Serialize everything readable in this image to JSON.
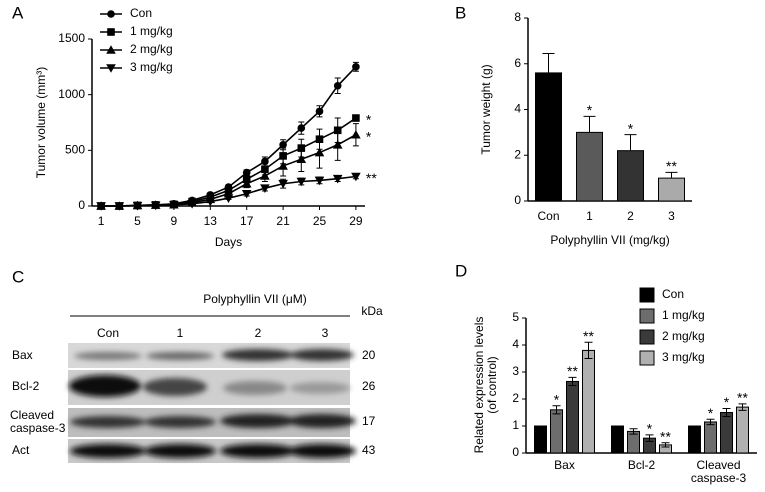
{
  "chart_data": [
    {
      "type": "line",
      "title": "A",
      "xlabel": "Days",
      "ylabel": "Tumor volume (mm³)",
      "x": [
        1,
        3,
        5,
        7,
        9,
        11,
        13,
        15,
        17,
        19,
        21,
        23,
        25,
        27,
        29
      ],
      "xlim": [
        0,
        30
      ],
      "xticks": [
        1,
        5,
        9,
        13,
        17,
        21,
        25,
        29
      ],
      "ylim": [
        0,
        1500
      ],
      "yticks": [
        0,
        500,
        1000,
        1500
      ],
      "series": [
        {
          "name": "Con",
          "color": "#000000",
          "marker": "circle",
          "values": [
            0,
            0,
            5,
            10,
            20,
            50,
            100,
            170,
            300,
            400,
            550,
            700,
            850,
            1080,
            1250
          ],
          "errors": [
            0,
            0,
            2,
            3,
            5,
            10,
            15,
            20,
            25,
            40,
            45,
            55,
            50,
            70,
            40
          ]
        },
        {
          "name": "1 mg/kg",
          "color": "#000000",
          "marker": "square",
          "annotation": "*",
          "values": [
            0,
            0,
            5,
            10,
            15,
            40,
            80,
            140,
            240,
            330,
            450,
            520,
            600,
            680,
            790
          ],
          "errors": [
            0,
            0,
            2,
            3,
            5,
            8,
            12,
            20,
            30,
            50,
            70,
            80,
            90,
            110,
            20
          ]
        },
        {
          "name": "2 mg/kg",
          "color": "#000000",
          "marker": "triangle",
          "annotation": "*",
          "values": [
            0,
            0,
            5,
            8,
            12,
            30,
            60,
            110,
            200,
            270,
            360,
            420,
            480,
            550,
            640
          ],
          "errors": [
            0,
            0,
            2,
            3,
            4,
            8,
            12,
            20,
            35,
            50,
            90,
            110,
            140,
            140,
            100
          ]
        },
        {
          "name": "3 mg/kg",
          "color": "#000000",
          "marker": "triangle-down",
          "annotation": "**",
          "values": [
            0,
            0,
            3,
            5,
            10,
            20,
            40,
            70,
            110,
            160,
            200,
            220,
            230,
            245,
            265
          ],
          "errors": [
            0,
            0,
            1,
            2,
            3,
            5,
            8,
            10,
            20,
            25,
            40,
            30,
            30,
            25,
            20
          ]
        }
      ]
    },
    {
      "type": "bar",
      "title": "B",
      "xlabel": "Polyphyllin VII (mg/kg)",
      "ylabel": "Tumor weight (g)",
      "categories": [
        "Con",
        "1",
        "2",
        "3"
      ],
      "values": [
        5.6,
        3.0,
        2.2,
        1.0
      ],
      "errors": [
        0.85,
        0.7,
        0.7,
        0.25
      ],
      "colors": [
        "#000000",
        "#5a5a5a",
        "#333333",
        "#aaaaaa"
      ],
      "significance": [
        null,
        "*",
        "*",
        "**"
      ],
      "ylim": [
        0,
        8
      ],
      "yticks": [
        0,
        2,
        4,
        6,
        8
      ]
    },
    {
      "type": "grouped-bar",
      "title": "D",
      "ylabel": "Related expression levels (of control)",
      "categories": [
        "Bax",
        "Bcl-2",
        "Cleaved caspase-3"
      ],
      "ylim": [
        0,
        5
      ],
      "yticks": [
        0,
        1,
        2,
        3,
        4,
        5
      ],
      "series": [
        {
          "name": "Con",
          "color": "#000000",
          "values": [
            1,
            1,
            1
          ],
          "errors": [
            0,
            0,
            0
          ],
          "significance": [
            null,
            null,
            null
          ]
        },
        {
          "name": "1 mg/kg",
          "color": "#6d6d6d",
          "values": [
            1.6,
            0.8,
            1.15
          ],
          "errors": [
            0.15,
            0.1,
            0.1
          ],
          "significance": [
            "*",
            null,
            "*"
          ]
        },
        {
          "name": "2 mg/kg",
          "color": "#3a3a3a",
          "values": [
            2.65,
            0.55,
            1.5
          ],
          "errors": [
            0.15,
            0.12,
            0.15
          ],
          "significance": [
            "**",
            "*",
            "*"
          ]
        },
        {
          "name": "3 mg/kg",
          "color": "#b0b0b0",
          "values": [
            3.8,
            0.3,
            1.7
          ],
          "errors": [
            0.3,
            0.08,
            0.12
          ],
          "significance": [
            "**",
            "**",
            "**"
          ]
        }
      ]
    }
  ],
  "blot": {
    "title": "C",
    "treatment": "Polyphyllin VII (μM)",
    "unit": "kDa",
    "lanes": [
      "Con",
      "1",
      "2",
      "3"
    ],
    "rows": [
      {
        "label": "Bax",
        "kda": "20"
      },
      {
        "label": "Bcl-2",
        "kda": "26"
      },
      {
        "label": "Cleaved caspase-3",
        "kda": "17"
      },
      {
        "label": "Act",
        "kda": "43"
      }
    ]
  }
}
